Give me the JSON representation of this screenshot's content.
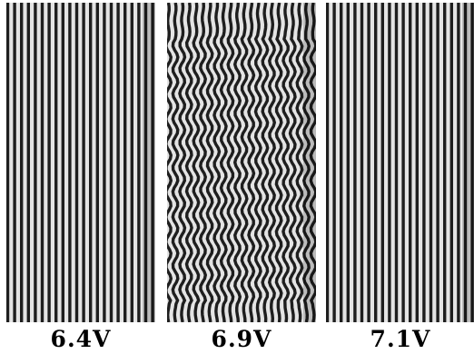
{
  "figure": {
    "panels": [
      {
        "label": "6.4V",
        "pattern": "straight"
      },
      {
        "label": "6.9V",
        "pattern": "undulating"
      },
      {
        "label": "7.1V",
        "pattern": "straight"
      }
    ],
    "colors": {
      "stripe_dark": "#1e1e1e",
      "stripe_light": "#e4e4e4",
      "background": "#8a8a8a"
    }
  }
}
